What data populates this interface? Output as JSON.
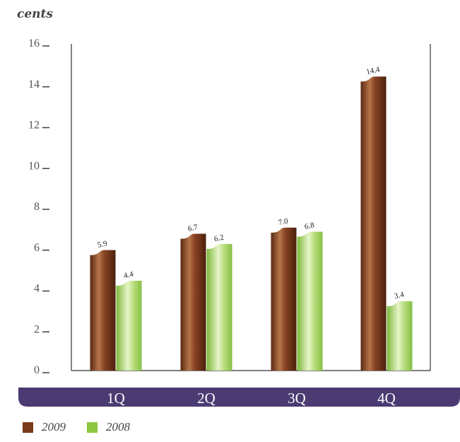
{
  "chart_data": {
    "type": "bar",
    "ylabel": "cents",
    "categories": [
      "1Q",
      "2Q",
      "3Q",
      "4Q"
    ],
    "series": [
      {
        "name": "2009",
        "values": [
          5.9,
          6.7,
          7.0,
          14.4
        ],
        "labels": [
          "5.9",
          "6.7",
          "7.0",
          "14.4"
        ],
        "color": "#7a3a1c"
      },
      {
        "name": "2008",
        "values": [
          4.4,
          6.2,
          6.8,
          3.4
        ],
        "labels": [
          "4.4",
          "6.2",
          "6.8",
          "3.4"
        ],
        "color": "#8cc63f"
      }
    ],
    "ylim": [
      0,
      16
    ],
    "yticks": [
      0,
      2,
      4,
      6,
      8,
      10,
      12,
      14,
      16
    ],
    "category_band_color": "#4b3b72",
    "legend_position": "bottom-left",
    "grid": false
  }
}
